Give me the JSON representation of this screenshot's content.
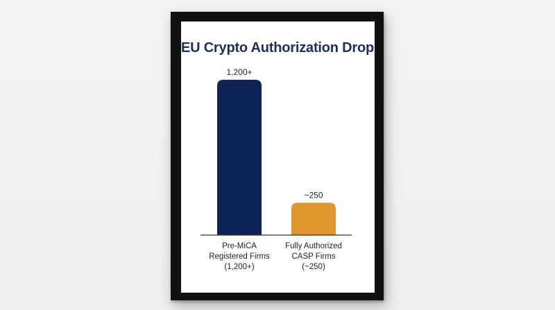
{
  "chart_data": {
    "type": "bar",
    "title": "EU Crypto Authorization Drop",
    "categories": [
      [
        "Pre-MiCA",
        "Registered Firms",
        "(1,200+)"
      ],
      [
        "Fully Authorized",
        "CASP Firms",
        "(~250)"
      ]
    ],
    "values": [
      1200,
      250
    ],
    "data_labels": [
      "1,200+",
      "~250"
    ],
    "colors": [
      "#0f2356",
      "#e0962e"
    ],
    "ylim": [
      0,
      1200
    ],
    "xlabel": "",
    "ylabel": "",
    "grid": false
  }
}
